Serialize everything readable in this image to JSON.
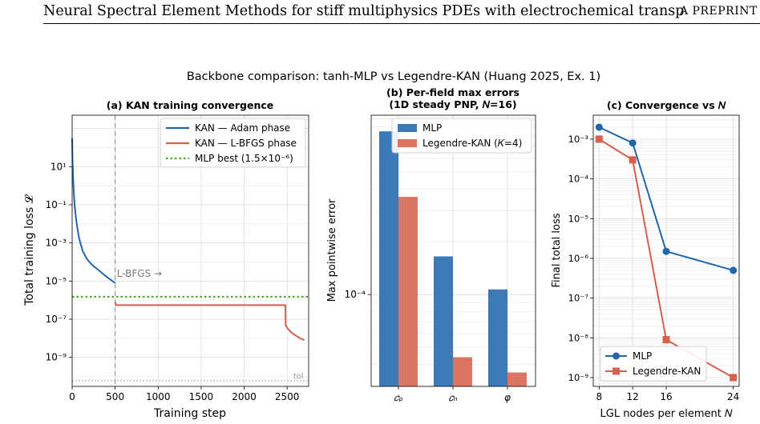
{
  "page": {
    "header_title": "Neural Spectral Element Methods for stiff multiphysics PDEs with electrochemical transport benchmarks",
    "header_tag": "A PREPRINT"
  },
  "figure": {
    "suptitle": "Backbone comparison: tanh-MLP vs Legendre-KAN (Huang 2025, Ex. 1)"
  },
  "colors": {
    "blue": "#2166ac",
    "red": "#d6604d",
    "green": "#4dac26",
    "gray": "#999999"
  },
  "chart_data": [
    {
      "type": "line",
      "title": "(a) KAN training convergence",
      "xlabel": "Training step",
      "ylabel": "Total training loss 𝓛",
      "yscale": "log",
      "xlim": [
        0,
        2750
      ],
      "ylim": [
        3e-11,
        5000
      ],
      "xticks": [
        "0",
        "500",
        "1000",
        "1500",
        "2000",
        "2500"
      ],
      "yticks": [
        "10¹",
        "10⁻¹",
        "10⁻³",
        "10⁻⁵",
        "10⁻⁷",
        "10⁻⁹"
      ],
      "grid": true,
      "legend": "top-right",
      "series": [
        {
          "name": "KAN — Adam phase",
          "color": "#2166ac",
          "x": [
            0,
            5,
            10,
            20,
            30,
            50,
            80,
            120,
            170,
            200,
            250,
            300,
            350,
            400,
            450,
            500
          ],
          "y": [
            300,
            20,
            3,
            0.4,
            0.08,
            0.012,
            0.0018,
            0.0004,
            0.00015,
            0.0001,
            6e-05,
            4e-05,
            2.6e-05,
            1.7e-05,
            1.15e-05,
            8e-06
          ]
        },
        {
          "name": "KAN — L-BFGS phase",
          "color": "#d6604d",
          "x": [
            500,
            510,
            600,
            1000,
            1500,
            2000,
            2450,
            2480,
            2482,
            2500,
            2550,
            2600,
            2650,
            2700
          ],
          "y": [
            8e-07,
            5.5e-07,
            5.5e-07,
            5.5e-07,
            5.5e-07,
            5.5e-07,
            5.5e-07,
            5.5e-07,
            5e-08,
            3.5e-08,
            2e-08,
            1.4e-08,
            1e-08,
            8e-09
          ]
        },
        {
          "name": "MLP best (1.5×10⁻⁶)",
          "color": "#4dac26",
          "style": "dotted",
          "y_const": 1.5e-06
        }
      ],
      "annotations": [
        {
          "text": "L-BFGS →",
          "x": 520,
          "y": 2.5e-05,
          "color": "#777777"
        },
        {
          "text": "tol",
          "x": 2630,
          "y": 1.1e-10,
          "color": "#999999"
        }
      ],
      "vline": 500,
      "hline_tol": 6e-11
    },
    {
      "type": "bar",
      "title_lines": [
        "(b) Per-field max errors",
        "(1D steady PNP, 𝑁=16)"
      ],
      "ylabel": "Max pointwise error",
      "yscale": "log",
      "ylim": [
        3e-05,
        0.00105
      ],
      "categories": [
        "𝑐ₚ",
        "𝑐ₙ",
        "φ"
      ],
      "ytick": "10⁻⁴",
      "grid": true,
      "legend": "top-right",
      "series": [
        {
          "name": "MLP",
          "color": "#2166ac",
          "values": [
            0.00085,
            0.000165,
            0.000107
          ]
        },
        {
          "name": "Legendre-KAN (𝐾=4)",
          "color": "#d6604d",
          "values": [
            0.00036,
            4.4e-05,
            3.6e-05
          ]
        }
      ]
    },
    {
      "type": "line",
      "title": "(c) Convergence vs 𝑁",
      "xlabel": "LGL nodes per element 𝑁",
      "ylabel": "Final total loss",
      "yscale": "log",
      "xlim": [
        7.3,
        24.7
      ],
      "ylim": [
        6e-10,
        0.004
      ],
      "x_ticks": [
        8,
        12,
        16,
        24
      ],
      "y_ticks": [
        "10⁻³",
        "10⁻⁴",
        "10⁻⁵",
        "10⁻⁶",
        "10⁻⁷",
        "10⁻⁸",
        "10⁻⁹"
      ],
      "grid": true,
      "legend": "bottom-left",
      "series": [
        {
          "name": "MLP",
          "color": "#2166ac",
          "marker": "circle",
          "x": [
            8,
            12,
            16,
            24
          ],
          "y": [
            0.002,
            0.0008,
            1.5e-06,
            5e-07
          ]
        },
        {
          "name": "Legendre-KAN",
          "color": "#d6604d",
          "marker": "square",
          "x": [
            8,
            12,
            16,
            24
          ],
          "y": [
            0.001,
            0.0003,
            9e-09,
            1e-09
          ]
        }
      ]
    }
  ]
}
